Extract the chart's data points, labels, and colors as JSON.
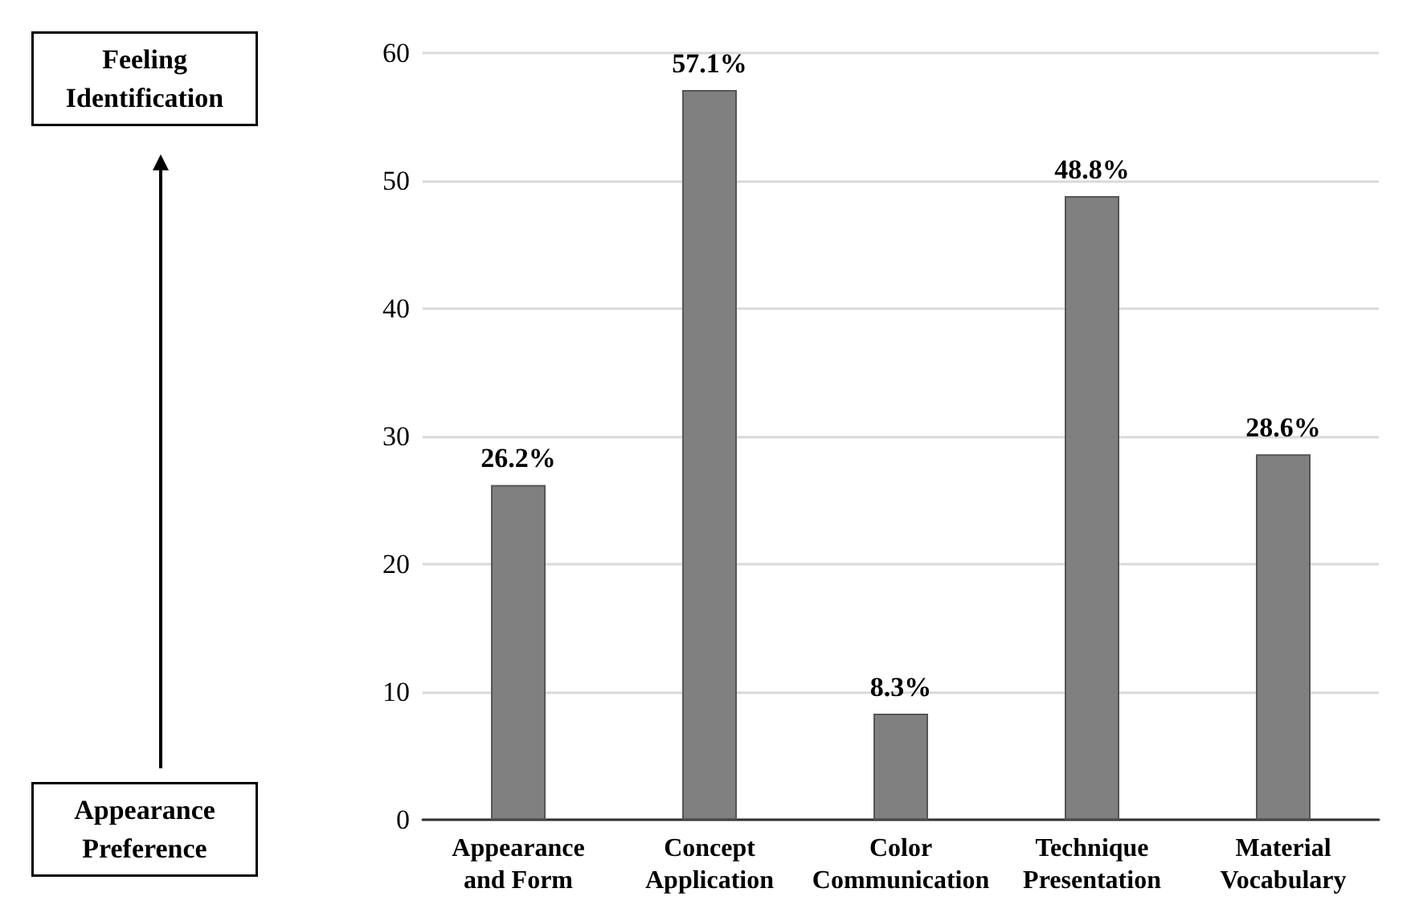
{
  "chart_data": {
    "type": "bar",
    "categories": [
      "Appearance\nand Form",
      "Concept\nApplication",
      "Color\nCommunication",
      "Technique\nPresentation",
      "Material\nVocabulary"
    ],
    "values": [
      26.2,
      57.1,
      8.3,
      48.8,
      28.6
    ],
    "value_labels": [
      "26.2%",
      "57.1%",
      "8.3%",
      "48.8%",
      "28.6%"
    ],
    "color": "#808080",
    "ylim": [
      0,
      60
    ],
    "yticks": [
      0,
      10,
      20,
      30,
      40,
      50,
      60
    ],
    "grid": "y",
    "annotations": [
      "Feeling\nIdentification",
      "Appearance\nPreference"
    ]
  }
}
